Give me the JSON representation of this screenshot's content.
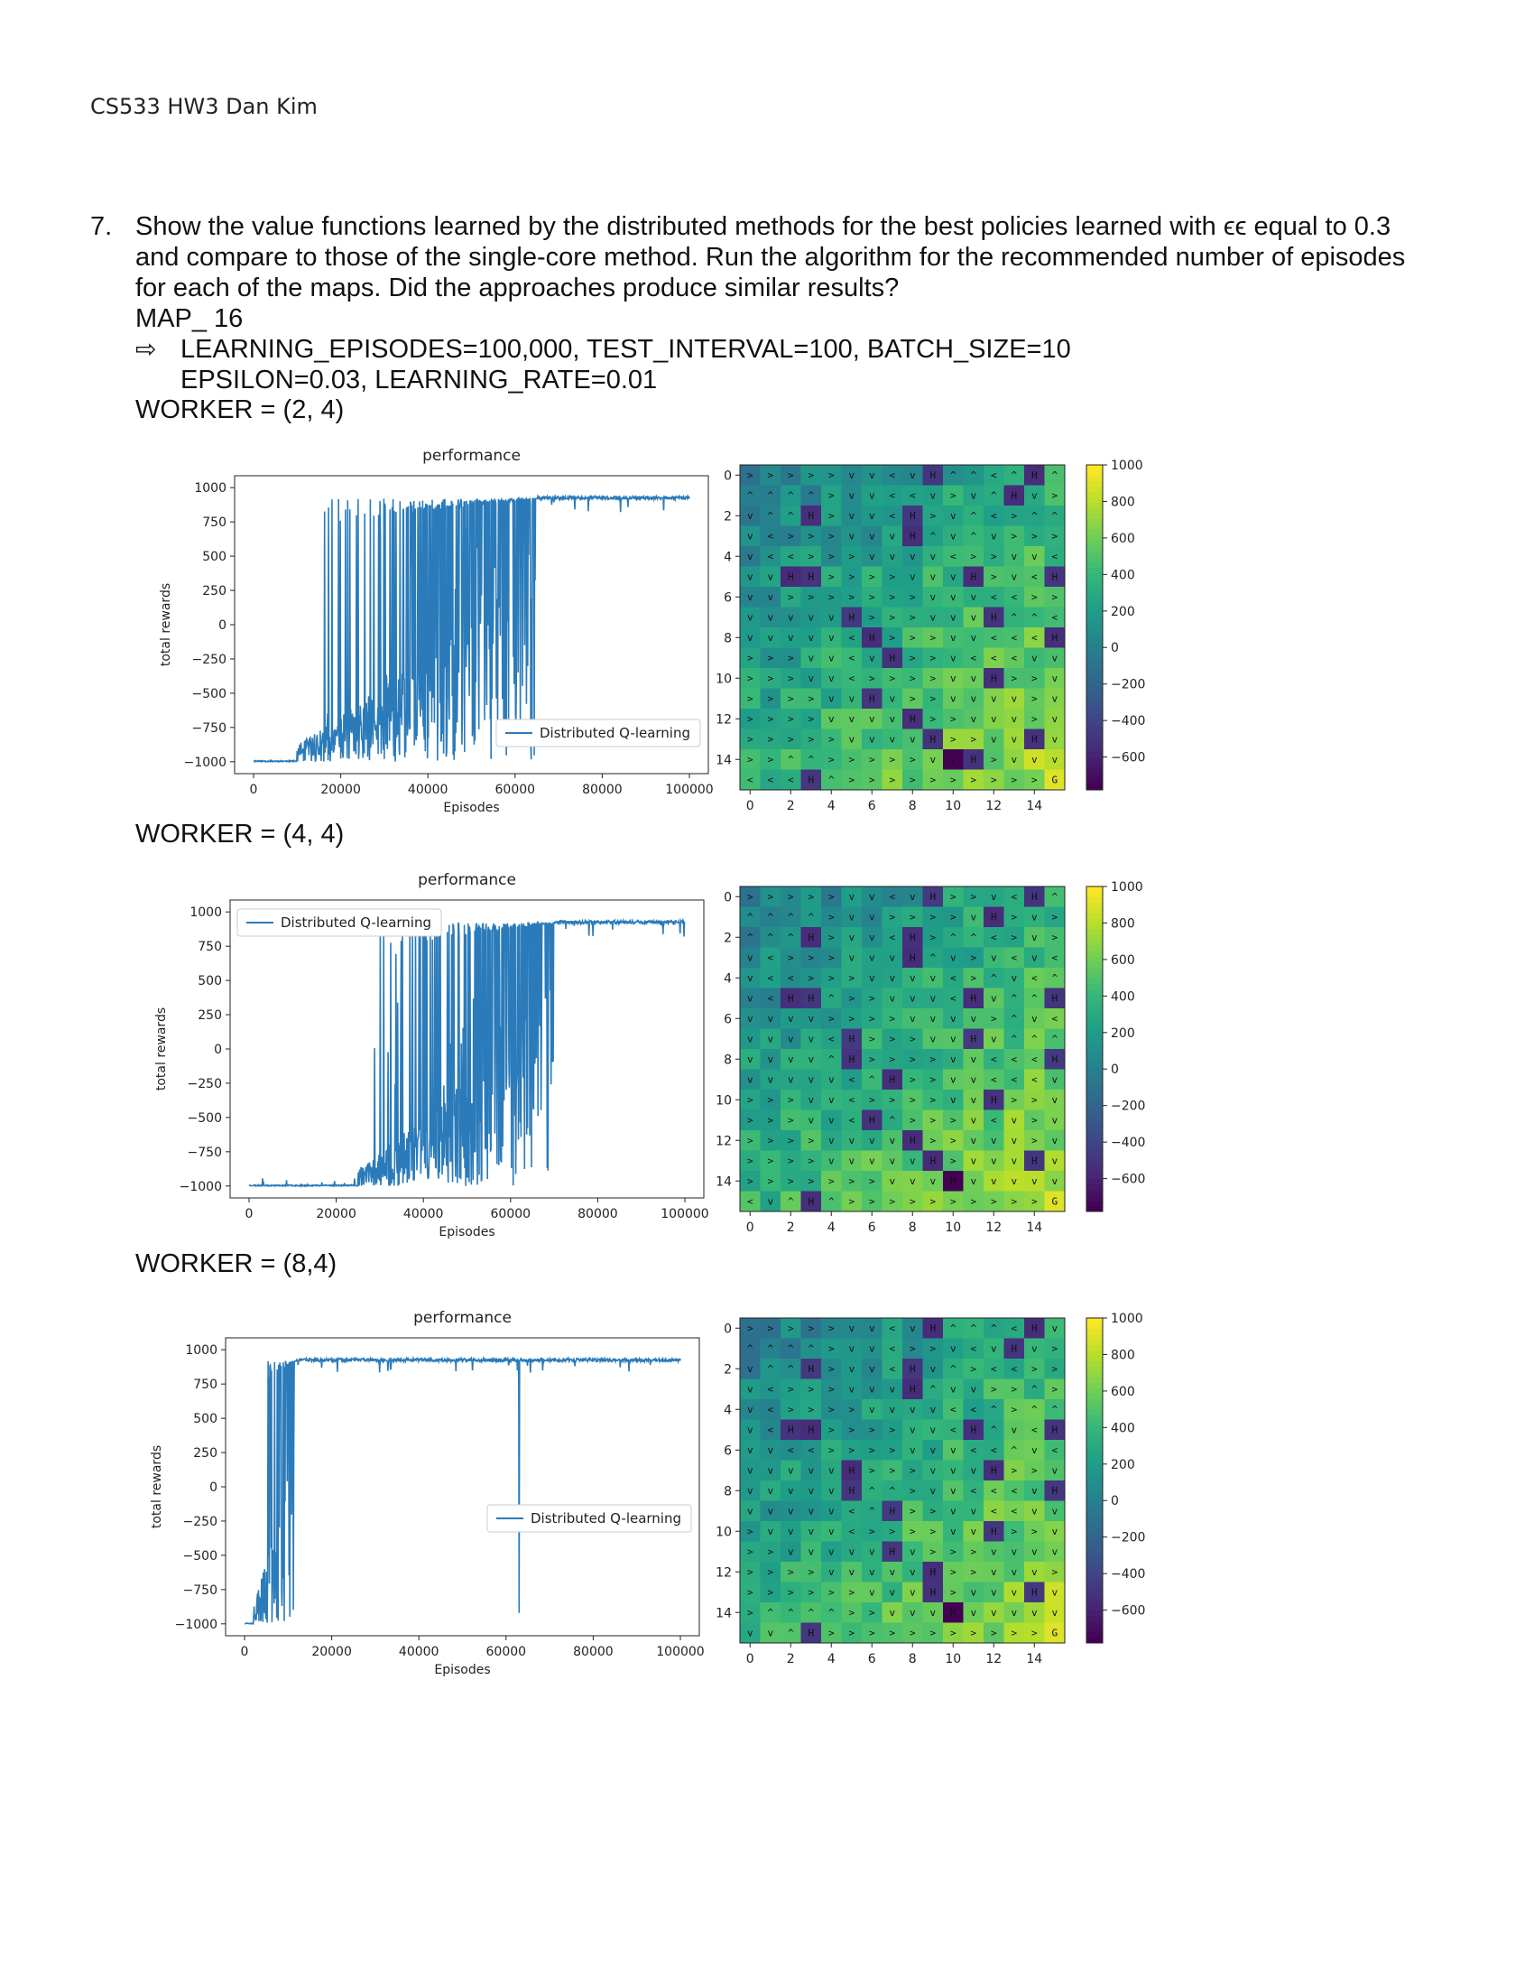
{
  "header": "CS533 HW3 Dan Kim",
  "question": {
    "number": "7.",
    "text": "Show the value functions learned by the distributed methods for the best policies learned with ϵϵ equal to 0.3 and compare to those of the single-core method. Run the algorithm for the recommended number of episodes for each of the maps. Did the approaches produce similar results?"
  },
  "map_label": "MAP_ 16",
  "arrow_symbol": "⇨",
  "params_line1": "LEARNING_EPISODES=100,000, TEST_INTERVAL=100, BATCH_SIZE=10",
  "params_line2": "EPSILON=0.03, LEARNING_RATE=0.01",
  "sections": [
    {
      "label": "WORKER = (2, 4)"
    },
    {
      "label": "WORKER = (4, 4)"
    },
    {
      "label": "WORKER = (8,4)"
    }
  ],
  "colors": {
    "line": "#2b7bba",
    "viridis_low": "#440154",
    "viridis_high": "#fde725"
  },
  "chart_data": [
    {
      "type": "line",
      "title": "performance",
      "xlabel": "Episodes",
      "ylabel": "total rewards",
      "xlim": [
        0,
        100000
      ],
      "ylim": [
        -1000,
        1000
      ],
      "xticks": [
        "0",
        "20000",
        "40000",
        "60000",
        "80000",
        "100000"
      ],
      "yticks": [
        "1000",
        "750",
        "500",
        "250",
        "0",
        "−250",
        "−500",
        "−750",
        "−1000"
      ],
      "legend": "Distributed Q-learning",
      "legend_position": "lower-right",
      "series": [
        {
          "name": "Distributed Q-learning",
          "rise_start": 10000,
          "converge_at": 65000
        }
      ]
    },
    {
      "type": "line",
      "title": "performance",
      "xlabel": "Episodes",
      "ylabel": "total rewards",
      "xlim": [
        0,
        100000
      ],
      "ylim": [
        -1000,
        1000
      ],
      "xticks": [
        "0",
        "20000",
        "40000",
        "60000",
        "80000",
        "100000"
      ],
      "yticks": [
        "1000",
        "750",
        "500",
        "250",
        "0",
        "−250",
        "−500",
        "−750",
        "−1000"
      ],
      "legend": "Distributed Q-learning",
      "legend_position": "upper-left",
      "series": [
        {
          "name": "Distributed Q-learning",
          "rise_start": 25000,
          "converge_at": 70000
        }
      ]
    },
    {
      "type": "line",
      "title": "performance",
      "xlabel": "Episodes",
      "ylabel": "total rewards",
      "xlim": [
        0,
        100000
      ],
      "ylim": [
        -1000,
        1000
      ],
      "xticks": [
        "0",
        "20000",
        "40000",
        "60000",
        "80000",
        "100000"
      ],
      "yticks": [
        "1000",
        "750",
        "500",
        "250",
        "0",
        "−250",
        "−500",
        "−750",
        "−1000"
      ],
      "legend": "Distributed Q-learning",
      "legend_position": "center-right",
      "series": [
        {
          "name": "Distributed Q-learning",
          "rise_start": 2000,
          "converge_at": 12000,
          "spike_at": 63000
        }
      ]
    },
    {
      "type": "heatmap",
      "ticks": [
        "0",
        "2",
        "4",
        "6",
        "8",
        "10",
        "12",
        "14"
      ],
      "colorbar_ticks": [
        "1000",
        "800",
        "600",
        "400",
        "200",
        "0",
        "−200",
        "−400",
        "−600"
      ],
      "grid": [
        ">>>>>vv<vH^^<^H^",
        "^^^^>vv<<v>v^Hv>",
        "v^^H>vv<H>v^<>^^",
        "v<>>>vvvH^v^v>>>",
        "v<<>>>vvvv<>>vv<",
        "vvHH>>>>vvvH>v<H",
        "vv>>>>>>>vvv<<>>",
        "vvvvvH>>>vvvH^^<",
        "vvvvv<H>>>vv<<<H",
        ">>>vv<vH>>v<<<vv",
        ">>>vv<>>>>vvH>>v",
        ">>>>vvHv>>vvvv>v",
        ">>>>vvvvH>>vvv>v",
        ">>>>>vvvvH>>vvHv",
        ">>^^>>>>>vvH>vvv",
        "<<<H^>>>>>>>>>>G"
      ]
    },
    {
      "type": "heatmap",
      "ticks": [
        "0",
        "2",
        "4",
        "6",
        "8",
        "10",
        "12",
        "14"
      ],
      "colorbar_ticks": [
        "1000",
        "800",
        "600",
        "400",
        "200",
        "0",
        "−200",
        "−400",
        "−600"
      ],
      "grid": [
        ">>>>>vv<vH>>v<H^",
        "^^^^>vv>>>>vH>v>",
        "^^^H>vv<H>^^<>v>",
        "v<>>>vvvH^v>v<v<",
        "v<<>>>vvvv<>^v<^",
        "v<HH^>>vvv<Hv^^H",
        "vvvv>>>>vvvv>^v<",
        "vvvv<H>>>vvHv^^^",
        "vvvv^H>>>>vv<<<H",
        "vvvvv<^H>>vv<<<v",
        ">>>vv<>>>>vvH>>v",
        ">>>vv<H^>>>v<v>v",
        ">>>>vvvvH>>vvv>v",
        ">>>>vvvvvH>vvvHv",
        ">>>>>>>vvvHvvvvv",
        "<v^H^>>>>>>>>>>G"
      ]
    },
    {
      "type": "heatmap",
      "ticks": [
        "0",
        "2",
        "4",
        "6",
        "8",
        "10",
        "12",
        "14"
      ],
      "colorbar_ticks": [
        "1000",
        "800",
        "600",
        "400",
        "200",
        "0",
        "−200",
        "−400",
        "−600"
      ],
      "grid": [
        ">>>>>vv<vH^^^<Hv",
        "^^^^>vv<>>v<vHv>",
        "v^^H>vv<Hv^><<>>",
        "v<>>>vvvH^vv>>^>",
        "v<>>>>vvvv<<^>^^",
        "v<HH>>>>vv<H^v<H",
        "vv<<>>>>vvv<<^v<",
        "vvvvvH>>>vvvH>>v",
        "vvvvvH^^>vv<<<vH",
        "vvvvv<^H>>vv<<vv",
        ">vvvv<>>>>vvH>>v",
        ">>vvvvvHv>>>vvvv",
        ">>>>vvvvvH>>vvv>",
        ">>>>>>vvvH>vvvHv",
        ">^^^^>>vvvHvvvvv",
        "vv^H>>>>>>>>>>>G"
      ]
    }
  ]
}
